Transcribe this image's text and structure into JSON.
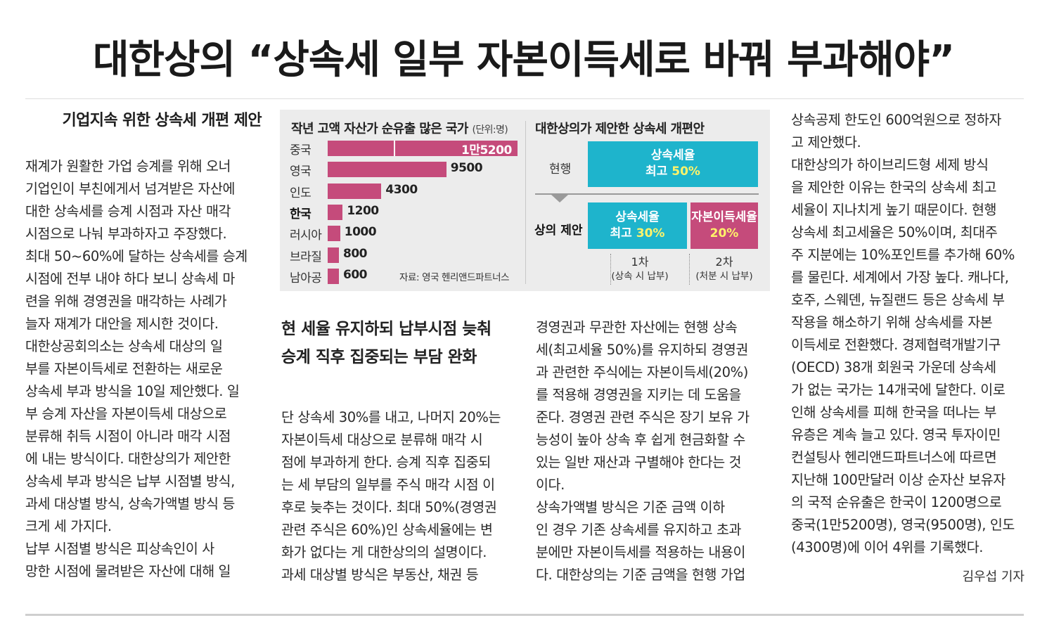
{
  "headline": "대한상의 “상속세 일부 자본이득세로 바꿔 부과해야”",
  "subhead": "기업지속 위한 상속세 개편 제안",
  "mid_heading": [
    "현 세율 유지하되 납부시점 늦춰",
    "승계 직후 집중되는 부담 완화"
  ],
  "col1": {
    "lines": [
      "재계가 원활한 가업 승계를 위해 오너",
      "기업인이 부친에게서 넘겨받은 자산에",
      "대한 상속세를 승계 시점과 자산 매각",
      "시점으로 나눠 부과하자고 주장했다.",
      "최대 50~60%에 달하는 상속세를 승계",
      "시점에 전부 내야 하다 보니 상속세 마",
      "련을 위해 경영권을 매각하는 사례가",
      "늘자 재계가 대안을 제시한 것이다.",
      "  대한상공회의소는 상속세 대상의 일",
      "부를 자본이득세로 전환하는 새로운",
      "상속세 부과 방식을 10일 제안했다. 일",
      "부 승계 자산을 자본이득세 대상으로",
      "분류해 취득 시점이 아니라 매각 시점",
      "에 내는 방식이다. 대한상의가 제안한",
      "상속세 부과 방식은 납부 시점별 방식,",
      "과세 대상별 방식, 상속가액별 방식 등",
      "크게 세 가지다.",
      "  납부 시점별 방식은 피상속인이 사",
      "망한 시점에 물려받은 자산에 대해 일"
    ]
  },
  "col2": {
    "lines": [
      "단 상속세 30%를 내고, 나머지 20%는",
      "자본이득세 대상으로 분류해 매각 시",
      "점에 부과하게 한다. 승계 직후 집중되",
      "는 세 부담의 일부를 주식 매각 시점 이",
      "후로 늦추는 것이다. 최대 50%(경영권",
      "관련 주식은 60%)인 상속세율에는 변",
      "화가 없다는 게 대한상의의 설명이다.",
      "  과세 대상별 방식은 부동산, 채권 등"
    ]
  },
  "col3": {
    "lines": [
      "경영권과 무관한 자산에는 현행 상속",
      "세(최고세율 50%)를 유지하되 경영권",
      "과 관련한 주식에는 자본이득세(20%)",
      "를 적용해 경영권을 지키는 데 도움을",
      "준다. 경영권 관련 주식은 장기 보유 가",
      "능성이 높아 상속 후 쉽게 현금화할 수",
      "있는 일반 재산과 구별해야 한다는 것",
      "이다.",
      "  상속가액별 방식은 기준 금액 이하",
      "인 경우 기존 상속세를 유지하고 초과",
      "분에만 자본이득세를 적용하는 내용이",
      "다. 대한상의는 기준 금액을 현행 가업"
    ]
  },
  "col4": {
    "lines": [
      "상속공제 한도인 600억원으로 정하자",
      "고 제안했다.",
      "  대한상의가 하이브리드형 세제 방식",
      "을 제안한 이유는 한국의 상속세 최고",
      "세율이 지나치게 높기 때문이다. 현행",
      "상속세 최고세율은 50%이며, 최대주",
      "주 지분에는 10%포인트를 추가해 60%",
      "를 물린다. 세계에서 가장 높다. 캐나다,",
      "호주, 스웨덴, 뉴질랜드 등은 상속세 부",
      "작용을 해소하기 위해 상속세를 자본",
      "이득세로 전환했다. 경제협력개발기구",
      "(OECD) 38개 회원국 가운데 상속세",
      "가 없는 국가는 14개국에 달한다. 이로",
      "인해 상속세를 피해 한국을 떠나는 부",
      "유층은 계속 늘고 있다. 영국 투자이민",
      "컨설팅사 헨리앤드파트너스에 따르면",
      "지난해 100만달러 이상 순자산 보유자",
      "의 국적 순유출은 한국이 1200명으로",
      "중국(1만5200명), 영국(9500명), 인도",
      "(4300명)에 이어 4위를 기록했다."
    ],
    "byline": "김우섭 기자"
  },
  "graphic": {
    "left_title": "작년 고액 자산가 순유출 많은 국가",
    "left_unit": "(단위:명)",
    "source": "자료: 영국 헨리앤드파트너스",
    "right_title": "대한상의가 제안한 상속세 개편안",
    "current_label": "현행",
    "current_box": {
      "line1": "상속세율",
      "line2_prefix": "최고 ",
      "line2_value": "50%"
    },
    "proposal_label": "상의 제안",
    "stage1_box": {
      "line1": "상속세율",
      "line2_prefix": "최고 ",
      "line2_value": "30%"
    },
    "stage2_box": {
      "line1": "자본이득세율",
      "line2_value": "20%"
    },
    "stage1_label": "1차",
    "stage1_sub": "(상속 시 납부)",
    "stage2_label": "2차",
    "stage2_sub": "(처분 시 납부)",
    "colors": {
      "bar": "#c54b7b",
      "cyan": "#1eb4cc",
      "highlight": "#fff36a",
      "panel": "#ececec"
    }
  },
  "chart_data": {
    "type": "bar",
    "orientation": "horizontal",
    "title": "작년 고액 자산가 순유출 많은 국가",
    "unit": "(단위:명)",
    "categories": [
      "중국",
      "영국",
      "인도",
      "한국",
      "러시아",
      "브라질",
      "남아공"
    ],
    "values": [
      15200,
      9500,
      4300,
      1200,
      1000,
      800,
      600
    ],
    "value_labels": [
      "1만5200",
      "9500",
      "4300",
      "1200",
      "1000",
      "800",
      "600"
    ],
    "highlight_category": "한국",
    "source": "자료: 영국 헨리앤드파트너스"
  }
}
